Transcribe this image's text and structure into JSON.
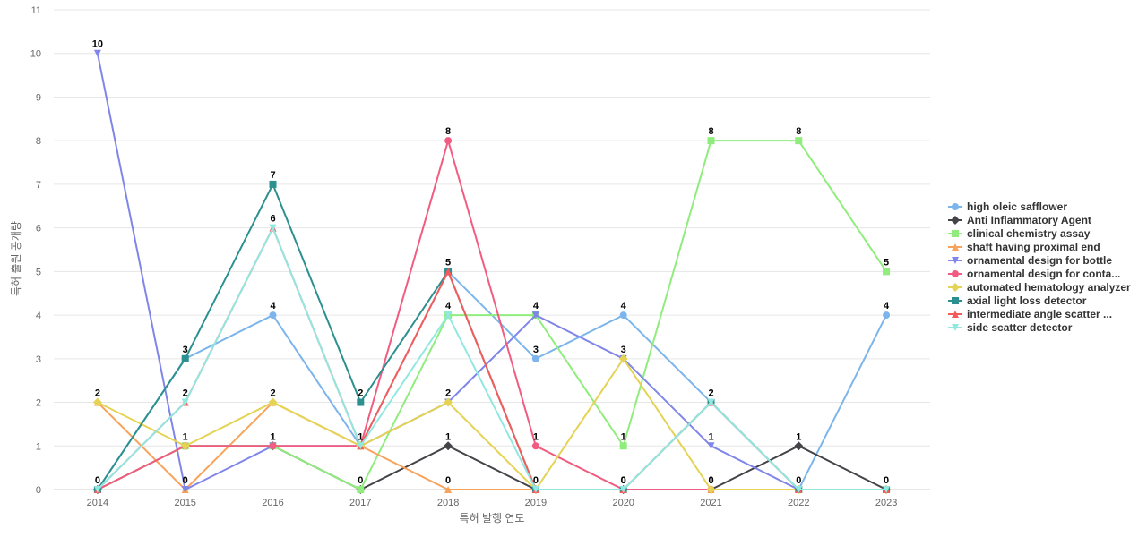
{
  "chart_data": {
    "type": "line",
    "title": "",
    "xlabel": "특허 발행 연도",
    "ylabel": "특허 출원 공개량",
    "x": [
      "2014",
      "2015",
      "2016",
      "2017",
      "2018",
      "2019",
      "2020",
      "2021",
      "2022",
      "2023"
    ],
    "y_ticks": [
      0,
      1,
      2,
      3,
      4,
      5,
      6,
      7,
      8,
      9,
      10,
      11
    ],
    "ylim": [
      0,
      11
    ],
    "grid": true,
    "legend_position": "right",
    "series": [
      {
        "name": "high oleic safflower",
        "color": "#7cb5ec",
        "marker": "circle",
        "values": [
          0,
          3,
          4,
          1,
          5,
          3,
          4,
          2,
          0,
          4
        ],
        "labels": [
          null,
          "3",
          "4",
          null,
          null,
          "3",
          "4",
          null,
          null,
          "4"
        ]
      },
      {
        "name": "Anti Inflammatory Agent",
        "color": "#434348",
        "marker": "diamond",
        "values": [
          0,
          1,
          1,
          0,
          1,
          0,
          0,
          0,
          1,
          0
        ],
        "labels": [
          null,
          null,
          null,
          "0",
          "1",
          null,
          null,
          "0",
          "1",
          null
        ]
      },
      {
        "name": "clinical chemistry assay",
        "color": "#90ed7d",
        "marker": "square",
        "values": [
          0,
          1,
          1,
          0,
          4,
          4,
          1,
          8,
          8,
          5
        ],
        "labels": [
          null,
          null,
          null,
          null,
          null,
          null,
          "1",
          "8",
          "8",
          "5"
        ]
      },
      {
        "name": "shaft having proximal end",
        "color": "#f7a35c",
        "marker": "triangle",
        "values": [
          2,
          0,
          2,
          1,
          0,
          0,
          0,
          0,
          0,
          0
        ],
        "labels": [
          null,
          null,
          null,
          null,
          "0",
          null,
          null,
          null,
          null,
          null
        ]
      },
      {
        "name": "ornamental design for bottle",
        "color": "#8085e9",
        "marker": "triangle-down",
        "values": [
          10,
          0,
          1,
          1,
          2,
          4,
          3,
          1,
          0,
          0
        ],
        "labels": [
          "10",
          "0",
          "1",
          null,
          "2",
          "4",
          null,
          "1",
          "0",
          "0"
        ]
      },
      {
        "name": "ornamental design for conta...",
        "color": "#f15c80",
        "marker": "circle",
        "values": [
          0,
          1,
          1,
          1,
          8,
          1,
          0,
          0,
          0,
          0
        ],
        "labels": [
          null,
          null,
          null,
          null,
          "8",
          "1",
          "0",
          null,
          null,
          null
        ]
      },
      {
        "name": "automated hematology analyzer",
        "color": "#e4d354",
        "marker": "diamond",
        "values": [
          2,
          1,
          2,
          1,
          2,
          0,
          3,
          0,
          0,
          0
        ],
        "labels": [
          "2",
          "1",
          "2",
          "1",
          null,
          null,
          "3",
          "0",
          null,
          null
        ]
      },
      {
        "name": "axial light loss detector",
        "color": "#2b908f",
        "marker": "square",
        "values": [
          0,
          3,
          7,
          2,
          5,
          0,
          0,
          2,
          0,
          0
        ],
        "labels": [
          "0",
          null,
          "7",
          "2",
          "5",
          "0",
          null,
          null,
          null,
          null
        ]
      },
      {
        "name": "intermediate angle scatter ...",
        "color": "#f45b5b",
        "marker": "triangle",
        "values": [
          0,
          2,
          6,
          1,
          5,
          0,
          0,
          2,
          0,
          0
        ],
        "labels": [
          null,
          "2",
          null,
          null,
          null,
          null,
          null,
          null,
          null,
          null
        ]
      },
      {
        "name": "side scatter detector",
        "color": "#91e8e1",
        "marker": "triangle-down",
        "values": [
          0,
          2,
          6,
          1,
          4,
          0,
          0,
          2,
          0,
          0
        ],
        "labels": [
          null,
          null,
          "6",
          null,
          "4",
          null,
          "0",
          "2",
          null,
          null
        ]
      }
    ]
  }
}
